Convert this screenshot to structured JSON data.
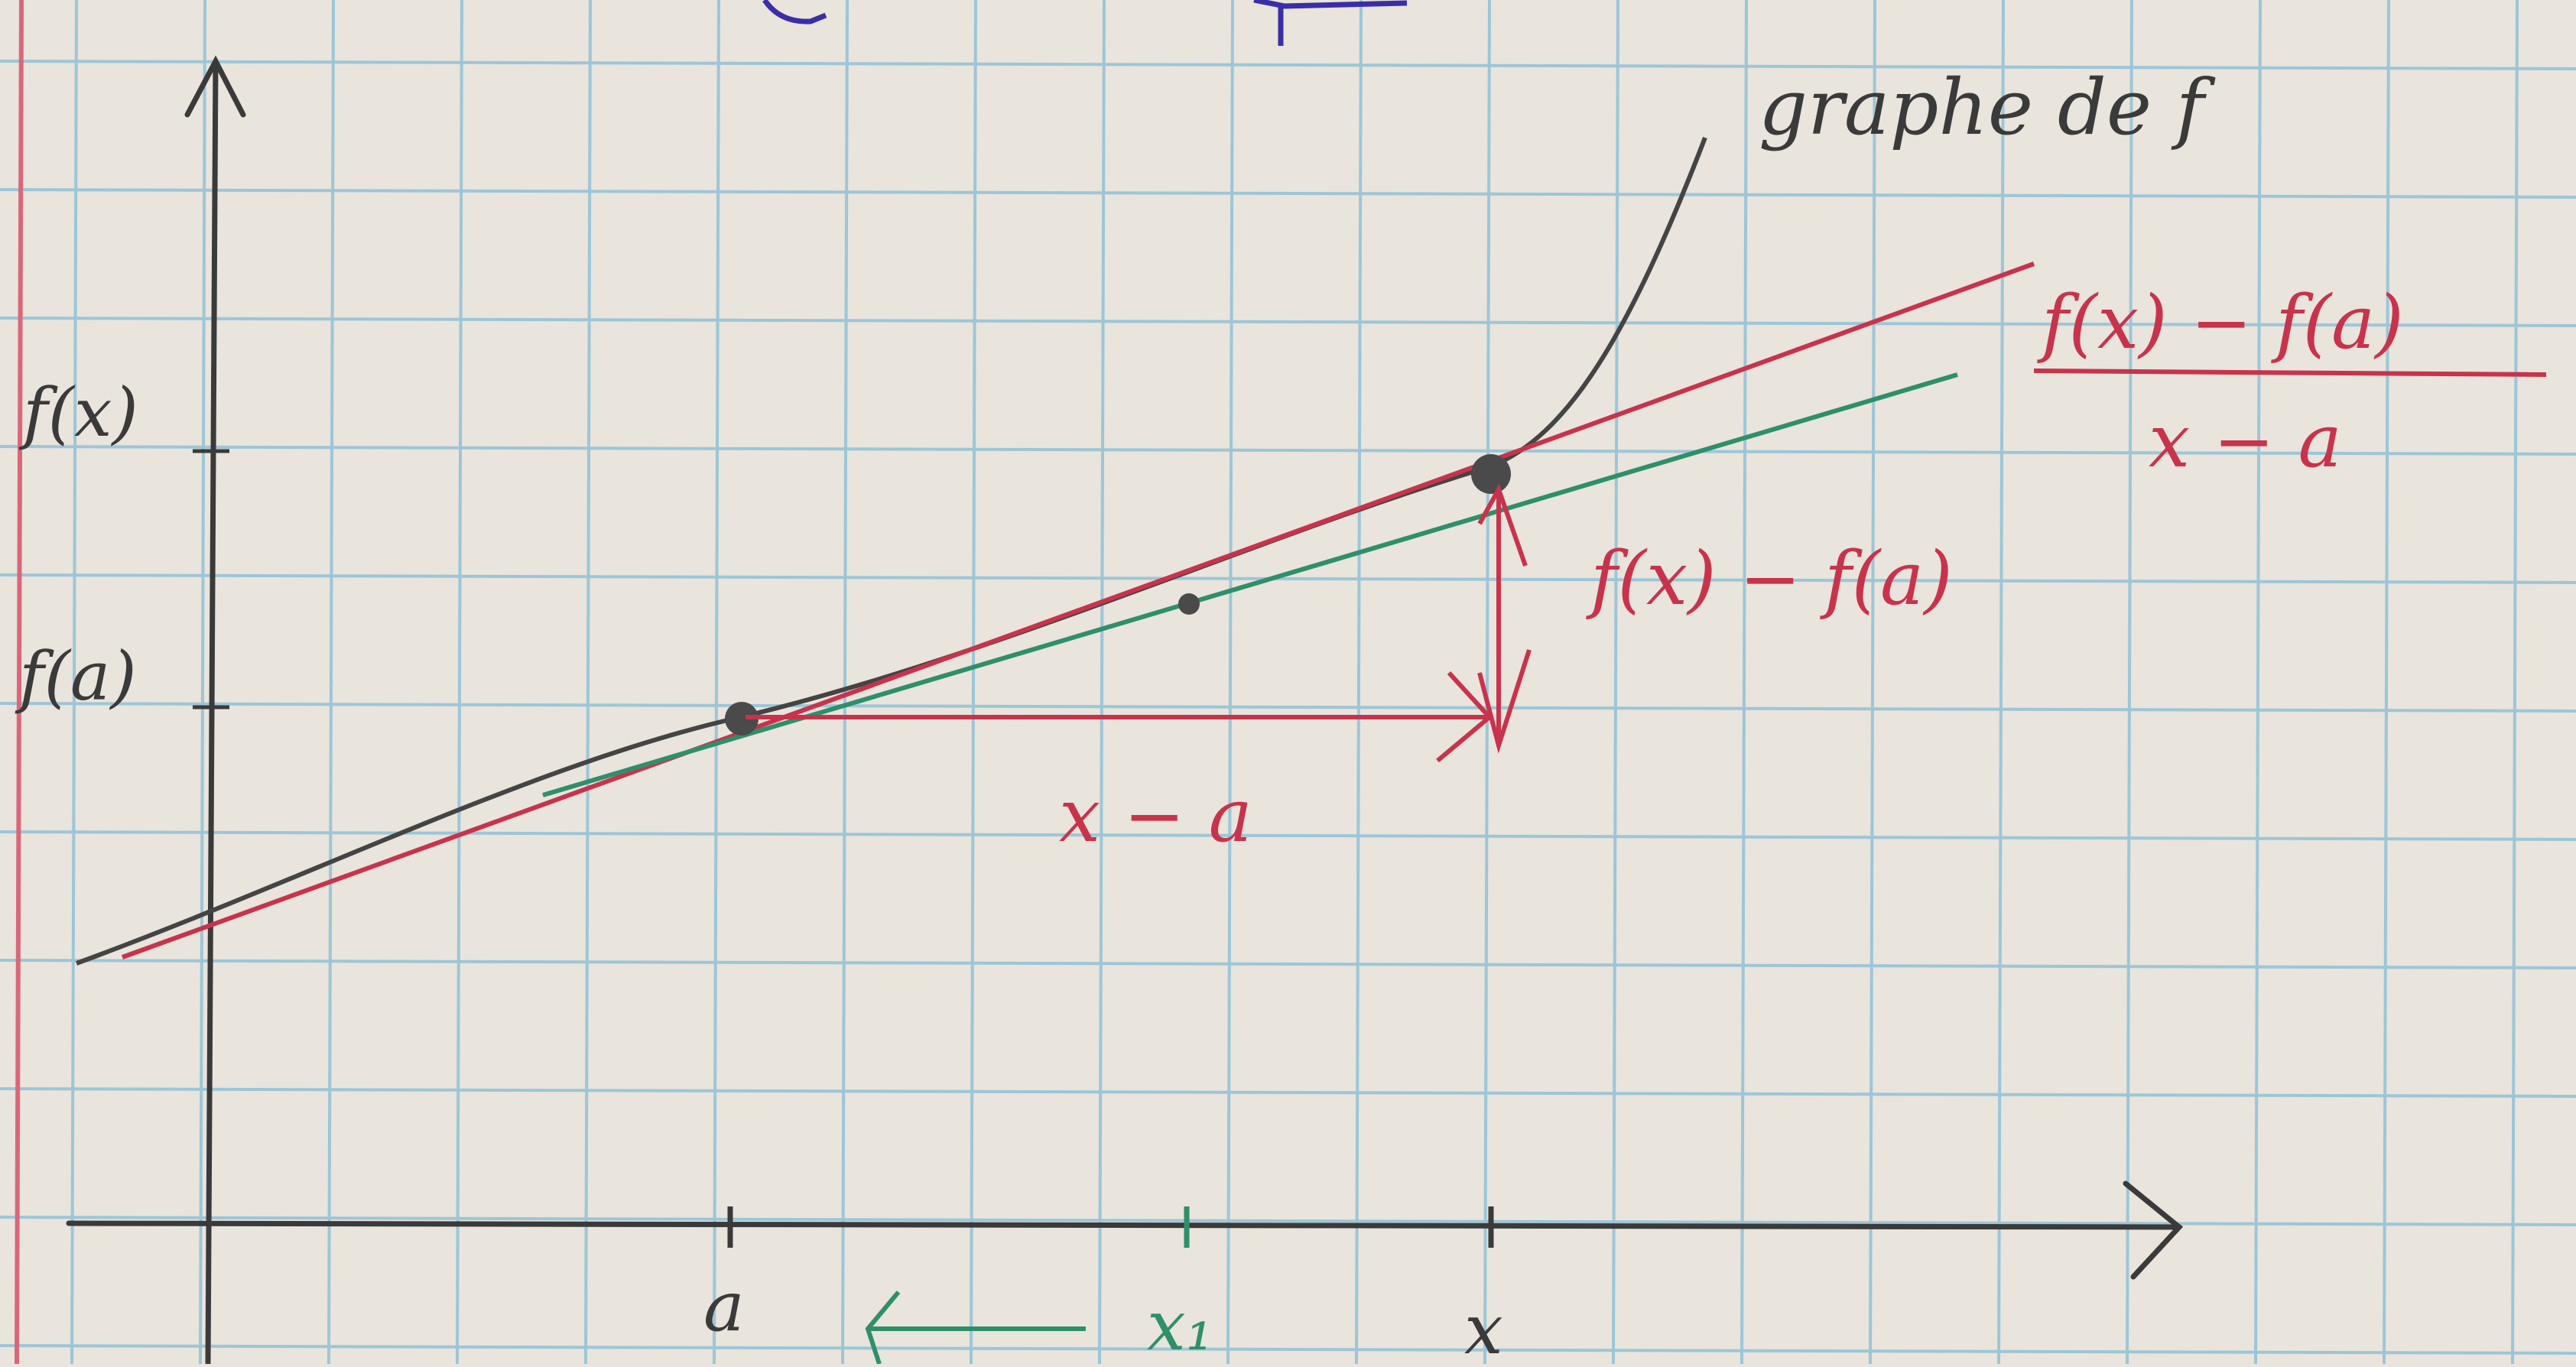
{
  "title": "graphe de f",
  "y_labels": {
    "fx": "f(x)",
    "fa": "f(a)"
  },
  "x_labels": {
    "a": "a",
    "x1": "x₁",
    "x": "x"
  },
  "annotations": {
    "numerator": "f(x) − f(a)",
    "denominator": "x − a",
    "vertical_gap": "f(x) − f(a)",
    "horizontal_gap": "x − a"
  },
  "colors": {
    "paper": "#e9e4dc",
    "grid": "#9cc6d8",
    "margin_line": "#d9677a",
    "axis": "#3a3a3a",
    "curve": "#444444",
    "secant": "#c8334c",
    "tangent": "#2f8f6a",
    "annotation": "#c8334c",
    "blue_ink": "#3a2ea8"
  }
}
